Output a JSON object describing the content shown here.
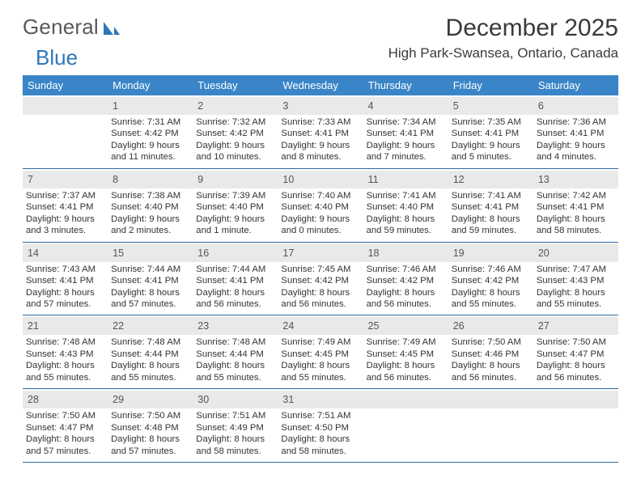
{
  "brand": {
    "part1": "General",
    "part2": "Blue"
  },
  "title": "December 2025",
  "location": "High Park-Swansea, Ontario, Canada",
  "colors": {
    "header_bg": "#3a85c7",
    "header_text": "#ffffff",
    "daynum_bg": "#e9e9e9",
    "rule": "#2f6aa0",
    "text": "#333333",
    "brand_gray": "#5a5a5a",
    "brand_blue": "#2f77bb"
  },
  "weekdays": [
    "Sunday",
    "Monday",
    "Tuesday",
    "Wednesday",
    "Thursday",
    "Friday",
    "Saturday"
  ],
  "weeks": [
    [
      {
        "n": "",
        "sr": "",
        "ss": "",
        "dl": ""
      },
      {
        "n": "1",
        "sr": "7:31 AM",
        "ss": "4:42 PM",
        "dl": "9 hours and 11 minutes."
      },
      {
        "n": "2",
        "sr": "7:32 AM",
        "ss": "4:42 PM",
        "dl": "9 hours and 10 minutes."
      },
      {
        "n": "3",
        "sr": "7:33 AM",
        "ss": "4:41 PM",
        "dl": "9 hours and 8 minutes."
      },
      {
        "n": "4",
        "sr": "7:34 AM",
        "ss": "4:41 PM",
        "dl": "9 hours and 7 minutes."
      },
      {
        "n": "5",
        "sr": "7:35 AM",
        "ss": "4:41 PM",
        "dl": "9 hours and 5 minutes."
      },
      {
        "n": "6",
        "sr": "7:36 AM",
        "ss": "4:41 PM",
        "dl": "9 hours and 4 minutes."
      }
    ],
    [
      {
        "n": "7",
        "sr": "7:37 AM",
        "ss": "4:41 PM",
        "dl": "9 hours and 3 minutes."
      },
      {
        "n": "8",
        "sr": "7:38 AM",
        "ss": "4:40 PM",
        "dl": "9 hours and 2 minutes."
      },
      {
        "n": "9",
        "sr": "7:39 AM",
        "ss": "4:40 PM",
        "dl": "9 hours and 1 minute."
      },
      {
        "n": "10",
        "sr": "7:40 AM",
        "ss": "4:40 PM",
        "dl": "9 hours and 0 minutes."
      },
      {
        "n": "11",
        "sr": "7:41 AM",
        "ss": "4:40 PM",
        "dl": "8 hours and 59 minutes."
      },
      {
        "n": "12",
        "sr": "7:41 AM",
        "ss": "4:41 PM",
        "dl": "8 hours and 59 minutes."
      },
      {
        "n": "13",
        "sr": "7:42 AM",
        "ss": "4:41 PM",
        "dl": "8 hours and 58 minutes."
      }
    ],
    [
      {
        "n": "14",
        "sr": "7:43 AM",
        "ss": "4:41 PM",
        "dl": "8 hours and 57 minutes."
      },
      {
        "n": "15",
        "sr": "7:44 AM",
        "ss": "4:41 PM",
        "dl": "8 hours and 57 minutes."
      },
      {
        "n": "16",
        "sr": "7:44 AM",
        "ss": "4:41 PM",
        "dl": "8 hours and 56 minutes."
      },
      {
        "n": "17",
        "sr": "7:45 AM",
        "ss": "4:42 PM",
        "dl": "8 hours and 56 minutes."
      },
      {
        "n": "18",
        "sr": "7:46 AM",
        "ss": "4:42 PM",
        "dl": "8 hours and 56 minutes."
      },
      {
        "n": "19",
        "sr": "7:46 AM",
        "ss": "4:42 PM",
        "dl": "8 hours and 55 minutes."
      },
      {
        "n": "20",
        "sr": "7:47 AM",
        "ss": "4:43 PM",
        "dl": "8 hours and 55 minutes."
      }
    ],
    [
      {
        "n": "21",
        "sr": "7:48 AM",
        "ss": "4:43 PM",
        "dl": "8 hours and 55 minutes."
      },
      {
        "n": "22",
        "sr": "7:48 AM",
        "ss": "4:44 PM",
        "dl": "8 hours and 55 minutes."
      },
      {
        "n": "23",
        "sr": "7:48 AM",
        "ss": "4:44 PM",
        "dl": "8 hours and 55 minutes."
      },
      {
        "n": "24",
        "sr": "7:49 AM",
        "ss": "4:45 PM",
        "dl": "8 hours and 55 minutes."
      },
      {
        "n": "25",
        "sr": "7:49 AM",
        "ss": "4:45 PM",
        "dl": "8 hours and 56 minutes."
      },
      {
        "n": "26",
        "sr": "7:50 AM",
        "ss": "4:46 PM",
        "dl": "8 hours and 56 minutes."
      },
      {
        "n": "27",
        "sr": "7:50 AM",
        "ss": "4:47 PM",
        "dl": "8 hours and 56 minutes."
      }
    ],
    [
      {
        "n": "28",
        "sr": "7:50 AM",
        "ss": "4:47 PM",
        "dl": "8 hours and 57 minutes."
      },
      {
        "n": "29",
        "sr": "7:50 AM",
        "ss": "4:48 PM",
        "dl": "8 hours and 57 minutes."
      },
      {
        "n": "30",
        "sr": "7:51 AM",
        "ss": "4:49 PM",
        "dl": "8 hours and 58 minutes."
      },
      {
        "n": "31",
        "sr": "7:51 AM",
        "ss": "4:50 PM",
        "dl": "8 hours and 58 minutes."
      },
      {
        "n": "",
        "sr": "",
        "ss": "",
        "dl": ""
      },
      {
        "n": "",
        "sr": "",
        "ss": "",
        "dl": ""
      },
      {
        "n": "",
        "sr": "",
        "ss": "",
        "dl": ""
      }
    ]
  ],
  "labels": {
    "sunrise": "Sunrise: ",
    "sunset": "Sunset: ",
    "daylight": "Daylight: "
  }
}
